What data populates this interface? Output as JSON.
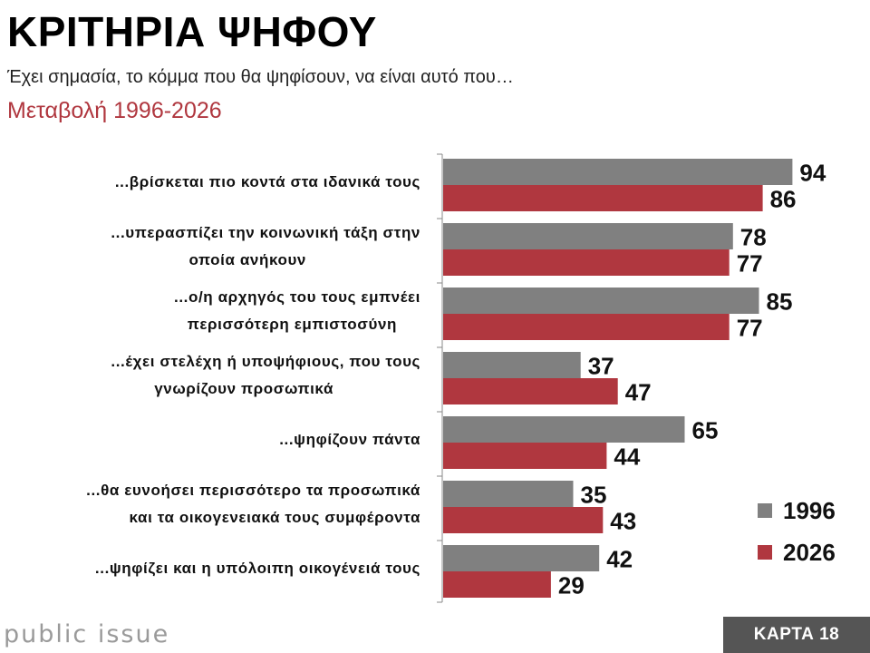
{
  "header": {
    "title": "ΚΡΙΤΗΡΙΑ ΨΗΦΟΥ",
    "subtitle": "Έχει σημασία, το κόμμα που θα ψηφίσουν, να είναι αυτό που…",
    "period": "Μεταβολή 1996-2026"
  },
  "colors": {
    "series_1996": "#808080",
    "series_2026": "#b0373f",
    "period_text": "#b0373f"
  },
  "chart_data": {
    "type": "bar",
    "orientation": "horizontal",
    "categories": [
      [
        "...βρίσκεται πιο κοντά στα ιδανικά τους"
      ],
      [
        "...υπερασπίζει την κοινωνική τάξη στην",
        "οποία ανήκουν"
      ],
      [
        "...ο/η αρχηγός του τους εμπνέει",
        "περισσότερη εμπιστοσύνη"
      ],
      [
        "...έχει στελέχη ή υποψήφιους, που τους",
        "γνωρίζουν προσωπικά"
      ],
      [
        "...ψηφίζουν πάντα"
      ],
      [
        "...θα ευνοήσει περισσότερο τα προσωπικά",
        "και τα οικογενειακά τους συμφέροντα"
      ],
      [
        "...ψηφίζει και η υπόλοιπη οικογένειά τους"
      ]
    ],
    "series": [
      {
        "name": "1996",
        "values": [
          94,
          78,
          85,
          37,
          65,
          35,
          42
        ]
      },
      {
        "name": "2026",
        "values": [
          86,
          77,
          77,
          47,
          44,
          43,
          29
        ]
      }
    ],
    "xlim": [
      0,
      100
    ],
    "legend": "bottom-right"
  },
  "footer": {
    "brand": "public issue",
    "badge": "ΚΑΡΤΑ 18"
  }
}
